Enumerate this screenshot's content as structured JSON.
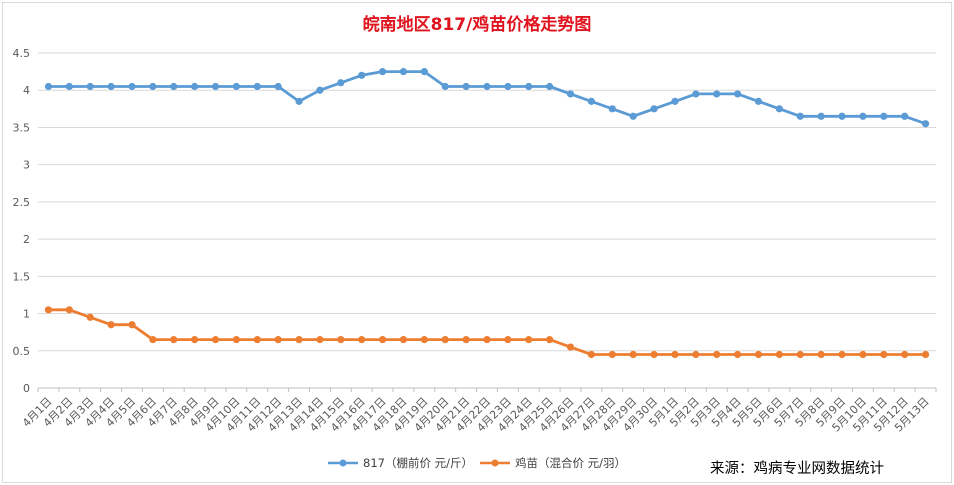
{
  "chart_data": {
    "type": "line",
    "title": "皖南地区817/鸡苗价格走势图",
    "categories": [
      "4月1日",
      "4月2日",
      "4月3日",
      "4月4日",
      "4月5日",
      "4月6日",
      "4月7日",
      "4月8日",
      "4月9日",
      "4月10日",
      "4月11日",
      "4月12日",
      "4月13日",
      "4月14日",
      "4月15日",
      "4月16日",
      "4月17日",
      "4月18日",
      "4月19日",
      "4月20日",
      "4月21日",
      "4月22日",
      "4月23日",
      "4月24日",
      "4月25日",
      "4月26日",
      "4月27日",
      "4月28日",
      "4月29日",
      "4月30日",
      "5月1日",
      "5月2日",
      "5月3日",
      "5月4日",
      "5月5日",
      "5月6日",
      "5月7日",
      "5月8日",
      "5月9日",
      "5月10日",
      "5月11日",
      "5月12日",
      "5月13日"
    ],
    "series": [
      {
        "name": "817（棚前价 元/斤）",
        "color": "#5b9bd5",
        "values": [
          4.05,
          4.05,
          4.05,
          4.05,
          4.05,
          4.05,
          4.05,
          4.05,
          4.05,
          4.05,
          4.05,
          4.05,
          3.85,
          4.0,
          4.1,
          4.2,
          4.25,
          4.25,
          4.25,
          4.05,
          4.05,
          4.05,
          4.05,
          4.05,
          4.05,
          3.95,
          3.85,
          3.75,
          3.65,
          3.75,
          3.85,
          3.95,
          3.95,
          3.95,
          3.85,
          3.75,
          3.65,
          3.65,
          3.65,
          3.65,
          3.65,
          3.65,
          3.55
        ]
      },
      {
        "name": "鸡苗（混合价 元/羽）",
        "color": "#ed7d31",
        "values": [
          1.05,
          1.05,
          0.95,
          0.85,
          0.85,
          0.65,
          0.65,
          0.65,
          0.65,
          0.65,
          0.65,
          0.65,
          0.65,
          0.65,
          0.65,
          0.65,
          0.65,
          0.65,
          0.65,
          0.65,
          0.65,
          0.65,
          0.65,
          0.65,
          0.65,
          0.55,
          0.45,
          0.45,
          0.45,
          0.45,
          0.45,
          0.45,
          0.45,
          0.45,
          0.45,
          0.45,
          0.45,
          0.45,
          0.45,
          0.45,
          0.45,
          0.45,
          0.45
        ]
      }
    ],
    "ylim": [
      0,
      4.5
    ],
    "yticks": [
      "0",
      "0.5",
      "1",
      "1.5",
      "2",
      "2.5",
      "3",
      "3.5",
      "4",
      "4.5"
    ],
    "grid": true,
    "legend": "bottom-center"
  },
  "source_text": "来源：鸡病专业网数据统计"
}
